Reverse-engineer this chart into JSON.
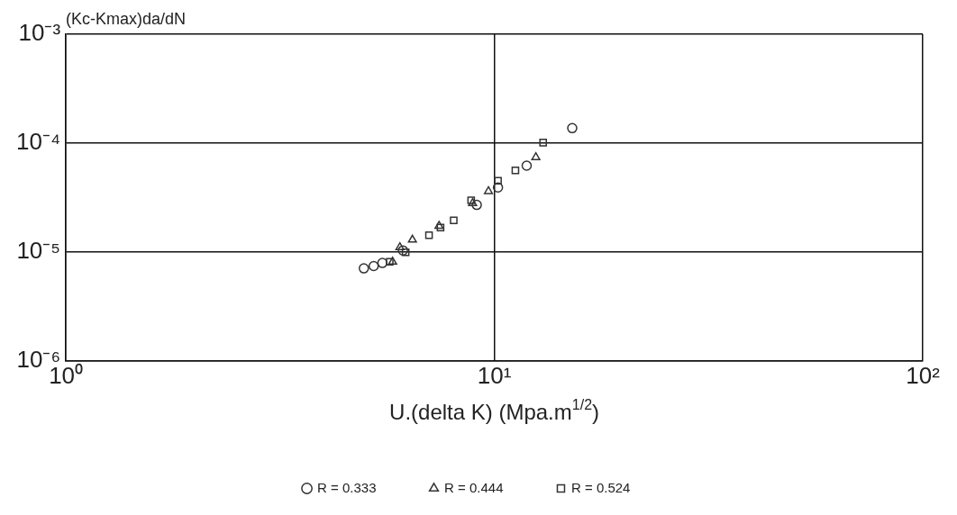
{
  "chart_data": {
    "type": "scatter",
    "ylabel": "(Kc-Kmax)da/dN",
    "xlabel": "U.(delta K) (Mpa.m$^{1/2}$)",
    "log": "xy",
    "grid": true,
    "legend": "bottom",
    "xlim": [
      1,
      100
    ],
    "ylim": [
      1e-06,
      0.001
    ],
    "xticks": [
      {
        "value": 1,
        "label": "10⁰"
      },
      {
        "value": 10,
        "label": "10¹"
      },
      {
        "value": 100,
        "label": "10²"
      }
    ],
    "yticks": [
      {
        "value": 1e-06,
        "label": "10⁻⁶"
      },
      {
        "value": 1e-05,
        "label": "10⁻⁵"
      },
      {
        "value": 0.0001,
        "label": "10⁻⁴"
      },
      {
        "value": 0.001,
        "label": "10⁻³"
      }
    ],
    "series": [
      {
        "name": "R = 0.333",
        "color": "#333333",
        "marker": "circle",
        "x": [
          4.96,
          5.23,
          5.48,
          6.12,
          9.1,
          10.2,
          11.9,
          15.2
        ],
        "values": [
          7.05e-06,
          7.4e-06,
          7.9e-06,
          1.03e-05,
          2.7e-05,
          3.9e-05,
          6.2e-05,
          0.000137
        ]
      },
      {
        "name": "R = 0.444",
        "color": "#333333",
        "marker": "triangle",
        "x": [
          5.79,
          6.02,
          6.44,
          7.43,
          8.9,
          9.69,
          12.5
        ],
        "values": [
          8.1e-06,
          1.1e-05,
          1.29e-05,
          1.73e-05,
          2.8e-05,
          3.6e-05,
          7.4e-05
        ]
      },
      {
        "name": "R = 0.524",
        "color": "#333333",
        "marker": "square",
        "x": [
          5.7,
          6.21,
          7.04,
          7.49,
          8.04,
          8.83,
          10.2,
          11.2,
          13.0
        ],
        "values": [
          8.1e-06,
          9.9e-06,
          1.42e-05,
          1.67e-05,
          1.95e-05,
          2.98e-05,
          4.5e-05,
          5.6e-05,
          0.000101
        ]
      }
    ]
  }
}
